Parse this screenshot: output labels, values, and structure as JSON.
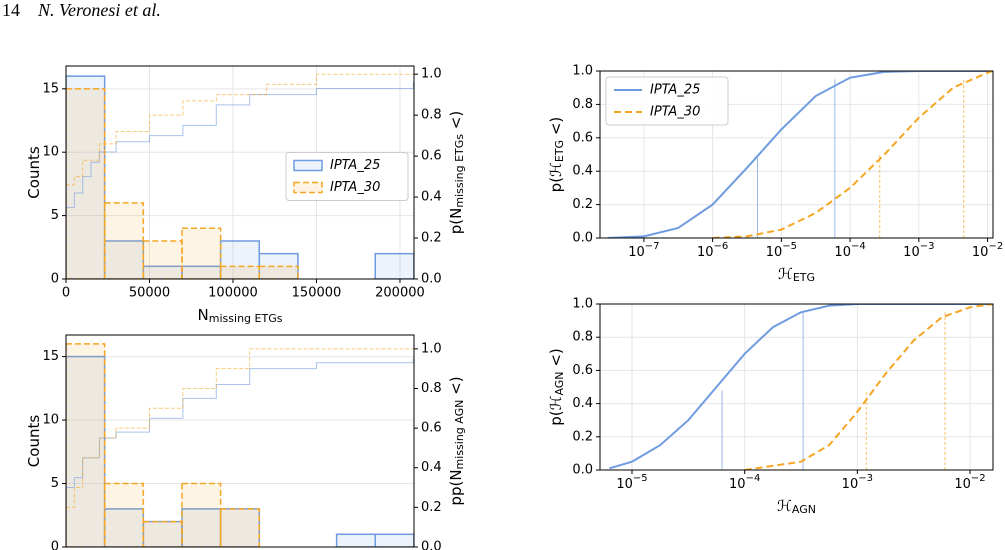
{
  "header": {
    "page_number": "14",
    "authors": "N. Veronesi et al."
  },
  "chart_data": [
    {
      "type": "histogram",
      "xlabel": [
        "N",
        "missing ETGs"
      ],
      "ylabel": [
        "Counts"
      ],
      "y2label": [
        "p(N",
        "missing ETGs",
        " <)"
      ],
      "bins": [
        0,
        23150,
        46300,
        69450,
        92600,
        115750,
        138900,
        162050,
        185200,
        208350
      ],
      "series": [
        {
          "name": "IPTA_25",
          "color": "#6f9be0",
          "dashed": false,
          "values": [
            16,
            3,
            1,
            1,
            3,
            2,
            0,
            0,
            2
          ]
        },
        {
          "name": "IPTA_30",
          "color": "#f5a623",
          "dashed": true,
          "values": [
            15,
            6,
            3,
            4,
            1,
            1,
            0,
            0,
            0
          ]
        }
      ],
      "cdf_series": [
        {
          "color": "#6f9be0",
          "dashed": false,
          "axis": "y2",
          "x": [
            0,
            5000,
            10000,
            15000,
            20000,
            30000,
            50000,
            70000,
            90000,
            110000,
            150000,
            208000
          ],
          "values": [
            0.35,
            0.42,
            0.5,
            0.57,
            0.62,
            0.67,
            0.7,
            0.75,
            0.85,
            0.9,
            0.93,
            0.96
          ]
        },
        {
          "color": "#f5a623",
          "dashed": true,
          "axis": "y2",
          "x": [
            0,
            5000,
            10000,
            20000,
            30000,
            50000,
            70000,
            90000,
            120000,
            150000,
            208000
          ],
          "values": [
            0.46,
            0.5,
            0.58,
            0.66,
            0.72,
            0.8,
            0.87,
            0.9,
            0.95,
            1.0,
            1.0
          ]
        }
      ],
      "xlim": [
        0,
        208400
      ],
      "xticks": [
        0,
        50000,
        100000,
        150000,
        200000
      ],
      "ylim": [
        0,
        16.8
      ],
      "yticks": [
        0,
        5,
        10,
        15
      ],
      "y2lim": [
        0,
        1.04
      ],
      "y2ticks": [
        {
          "value": 0,
          "label": "0.0"
        },
        0.2,
        0.4,
        0.6,
        0.8,
        {
          "value": 1,
          "label": "1.0"
        }
      ],
      "grid": true,
      "legend": "center right"
    },
    {
      "type": "histogram",
      "ylabel": [
        "Counts"
      ],
      "y2label": [
        "pp(N",
        "missing AGN",
        " <)"
      ],
      "bins": [
        0,
        23150,
        46300,
        69450,
        92600,
        115750,
        138900,
        162050,
        185200,
        208350
      ],
      "series": [
        {
          "name": "IPTA_25",
          "color": "#6f9be0",
          "dashed": false,
          "values": [
            15,
            3,
            2,
            3,
            3,
            0,
            0,
            1,
            1
          ]
        },
        {
          "name": "IPTA_30",
          "color": "#f5a623",
          "dashed": true,
          "values": [
            16,
            5,
            2,
            5,
            3,
            0,
            0,
            0,
            0
          ]
        }
      ],
      "cdf_series": [
        {
          "color": "#6f9be0",
          "dashed": false,
          "axis": "y2",
          "x": [
            0,
            5000,
            10000,
            20000,
            30000,
            50000,
            70000,
            90000,
            110000,
            150000,
            208000
          ],
          "values": [
            0.3,
            0.35,
            0.45,
            0.55,
            0.58,
            0.65,
            0.75,
            0.82,
            0.9,
            0.93,
            0.95
          ]
        },
        {
          "color": "#f5a623",
          "dashed": true,
          "axis": "y2",
          "x": [
            0,
            5000,
            10000,
            20000,
            30000,
            50000,
            70000,
            90000,
            110000,
            150000,
            208000
          ],
          "values": [
            0.2,
            0.3,
            0.45,
            0.55,
            0.6,
            0.7,
            0.8,
            0.9,
            1.0,
            1.0,
            1.0
          ]
        }
      ],
      "xlim": [
        0,
        208400
      ],
      "ylim": [
        0,
        16.7
      ],
      "yticks": [
        0,
        5,
        10,
        15
      ],
      "y2lim": [
        0,
        1.07
      ],
      "y2ticks": [
        {
          "value": 0,
          "label": "0.0"
        },
        0.2,
        0.4,
        0.6,
        0.8,
        {
          "value": 1,
          "label": "1.0"
        }
      ],
      "grid": true
    },
    {
      "type": "line",
      "xscale": "log",
      "xlabel": [
        "ℋ",
        "ETG"
      ],
      "ylabel": [
        "p(ℋ",
        "ETG",
        " <)"
      ],
      "series": [
        {
          "name": "IPTA_25",
          "color": "#6f9be0",
          "dashed": false,
          "x": [
            3e-08,
            1e-07,
            3.16e-07,
            1e-06,
            3.16e-06,
            1e-05,
            3.16e-05,
            0.0001,
            0.000316,
            0.001,
            0.012
          ],
          "values": [
            0,
            0.01,
            0.06,
            0.2,
            0.42,
            0.65,
            0.85,
            0.96,
            0.995,
            1,
            1
          ],
          "lines_x": [
            4.5e-06,
            6e-05
          ],
          "lines_y": [
            0.48,
            0.95
          ]
        },
        {
          "name": "IPTA_30",
          "color": "#f5a623",
          "dashed": true,
          "x": [
            1e-06,
            3.16e-06,
            1e-05,
            3.16e-05,
            0.0001,
            0.000316,
            0.001,
            0.00316,
            0.01,
            0.012
          ],
          "values": [
            0,
            0.01,
            0.05,
            0.15,
            0.3,
            0.5,
            0.72,
            0.9,
            0.99,
            1
          ],
          "lines_x": [
            0.00027,
            0.0045
          ],
          "lines_y": [
            0.5,
            0.95
          ]
        }
      ],
      "xlim": [
        2.3e-08,
        0.012
      ],
      "xticks": [
        {
          "value": 1e-07,
          "label": "10−7"
        },
        {
          "value": 1e-06,
          "label": "10−6"
        },
        {
          "value": 1e-05,
          "label": "10−5"
        },
        {
          "value": 0.0001,
          "label": "10−4"
        },
        {
          "value": 0.001,
          "label": "10−3"
        },
        {
          "value": 0.01,
          "label": "10−2"
        }
      ],
      "ylim": [
        0,
        1
      ],
      "yticks": [
        {
          "value": 0,
          "label": "0.0"
        },
        0.2,
        0.4,
        0.6,
        0.8,
        {
          "value": 1,
          "label": "1.0"
        }
      ],
      "grid": true,
      "legend": "upper left"
    },
    {
      "type": "line",
      "xscale": "log",
      "xlabel": [
        "ℋ",
        "AGN"
      ],
      "ylabel": [
        "p(ℋ",
        "AGN",
        " <)"
      ],
      "series": [
        {
          "name": "IPTA_25",
          "color": "#6f9be0",
          "dashed": false,
          "x": [
            6.3e-06,
            1e-05,
            1.78e-05,
            3.16e-05,
            5.62e-05,
            0.0001,
            0.000178,
            0.000316,
            0.000562,
            0.001,
            0.016
          ],
          "values": [
            0.01,
            0.05,
            0.15,
            0.3,
            0.5,
            0.7,
            0.86,
            0.95,
            0.99,
            1,
            1
          ],
          "lines_x": [
            6.3e-05,
            0.00033
          ],
          "lines_y": [
            0.48,
            0.95
          ]
        },
        {
          "name": "IPTA_30",
          "color": "#f5a623",
          "dashed": true,
          "x": [
            0.0001,
            0.000316,
            0.000562,
            0.001,
            0.00178,
            0.00316,
            0.00562,
            0.01,
            0.016
          ],
          "values": [
            0,
            0.05,
            0.15,
            0.35,
            0.58,
            0.78,
            0.92,
            0.98,
            1
          ],
          "lines_x": [
            0.0012,
            0.006
          ],
          "lines_y": [
            0.48,
            0.95
          ]
        }
      ],
      "xlim": [
        5.2e-06,
        0.016
      ],
      "xticks": [
        {
          "value": 1e-05,
          "label": "10−5"
        },
        {
          "value": 0.0001,
          "label": "10−4"
        },
        {
          "value": 0.001,
          "label": "10−3"
        },
        {
          "value": 0.01,
          "label": "10−2"
        }
      ],
      "ylim": [
        0,
        1
      ],
      "yticks": [
        {
          "value": 0,
          "label": "0.0"
        },
        0.2,
        0.4,
        0.6,
        0.8,
        {
          "value": 1,
          "label": "1.0"
        }
      ],
      "grid": true
    }
  ]
}
